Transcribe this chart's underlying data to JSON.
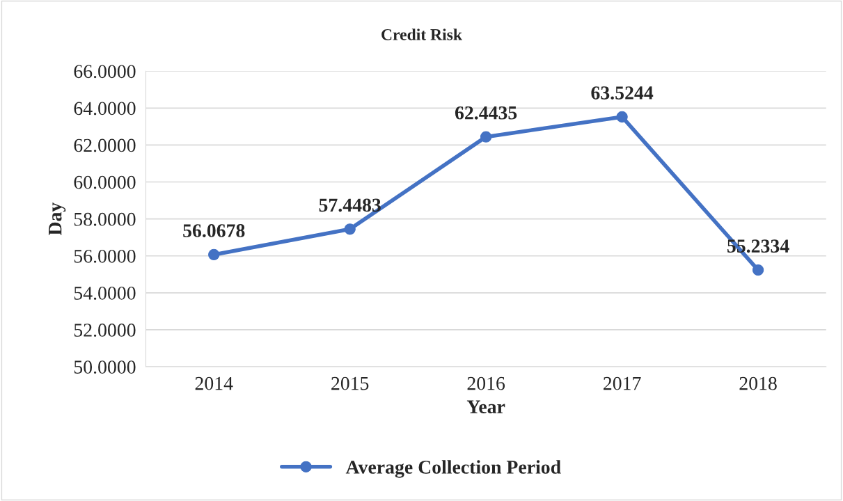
{
  "chart_data": {
    "type": "line",
    "title": "Credit Risk",
    "xlabel": "Year",
    "ylabel": "Day",
    "categories": [
      "2014",
      "2015",
      "2016",
      "2017",
      "2018"
    ],
    "series": [
      {
        "name": "Average Collection Period",
        "color": "#4472c4",
        "values": [
          56.0678,
          57.4483,
          62.4435,
          63.5244,
          55.2334
        ]
      }
    ],
    "ylim": [
      50,
      66
    ],
    "yticks": [
      {
        "value": 50,
        "label": "50.0000"
      },
      {
        "value": 52,
        "label": "52.0000"
      },
      {
        "value": 54,
        "label": "54.0000"
      },
      {
        "value": 56,
        "label": "56.0000"
      },
      {
        "value": 58,
        "label": "58.0000"
      },
      {
        "value": 60,
        "label": "60.0000"
      },
      {
        "value": 62,
        "label": "62.0000"
      },
      {
        "value": 64,
        "label": "64.0000"
      },
      {
        "value": 66,
        "label": "66.0000"
      }
    ],
    "grid": "y",
    "legend": "bottom",
    "marker": "circle",
    "line_style": "solid",
    "data_labels": true
  }
}
